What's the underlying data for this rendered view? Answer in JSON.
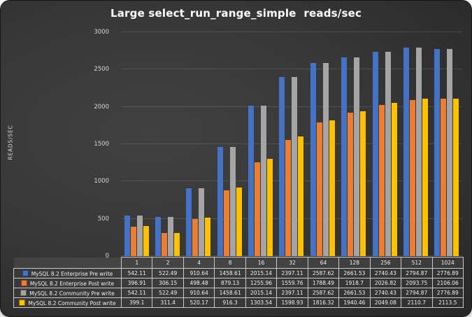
{
  "page": {
    "background": "#ffffff"
  },
  "card": {
    "background_center": "#414141",
    "background_edge": "#272727"
  },
  "chart_data": {
    "type": "bar",
    "title": "Large select_run_range_simple  reads/sec",
    "xlabel": "",
    "ylabel": "READS/SEC",
    "categories": [
      "1",
      "2",
      "4",
      "8",
      "16",
      "32",
      "64",
      "128",
      "256",
      "512",
      "1024"
    ],
    "series": [
      {
        "name": "MySQL 8.2 Enterprise Pre write",
        "color": "#4472C4",
        "values": [
          542.11,
          522.49,
          910.64,
          1458.61,
          2015.14,
          2397.11,
          2587.62,
          2661.53,
          2740.43,
          2794.87,
          2776.89
        ]
      },
      {
        "name": "MySQL 8.2 Enterprise Post write",
        "color": "#ED7D31",
        "values": [
          396.91,
          306.15,
          498.48,
          879.13,
          1255.96,
          1559.76,
          1788.49,
          1918.7,
          2026.82,
          2093.75,
          2106.06
        ]
      },
      {
        "name": "MySQL 8.2 Community Pre write",
        "color": "#A5A5A5",
        "values": [
          542.11,
          522.49,
          910.64,
          1458.61,
          2015.14,
          2397.11,
          2587.62,
          2661.53,
          2740.43,
          2794.87,
          2776.89
        ]
      },
      {
        "name": "MySQL 8.2 Community Post write",
        "color": "#FFC000",
        "values": [
          399.1,
          311.4,
          520.17,
          916.3,
          1303.54,
          1598.93,
          1816.32,
          1940.46,
          2049.08,
          2110.7,
          2113.5
        ]
      }
    ],
    "ylim": [
      0,
      3000
    ],
    "yticks": [
      0,
      500,
      1000,
      1500,
      2000,
      2500,
      3000
    ],
    "grid": true,
    "legend_position": "data-table-left",
    "gridline_color": "rgba(255,255,255,0.13)"
  }
}
